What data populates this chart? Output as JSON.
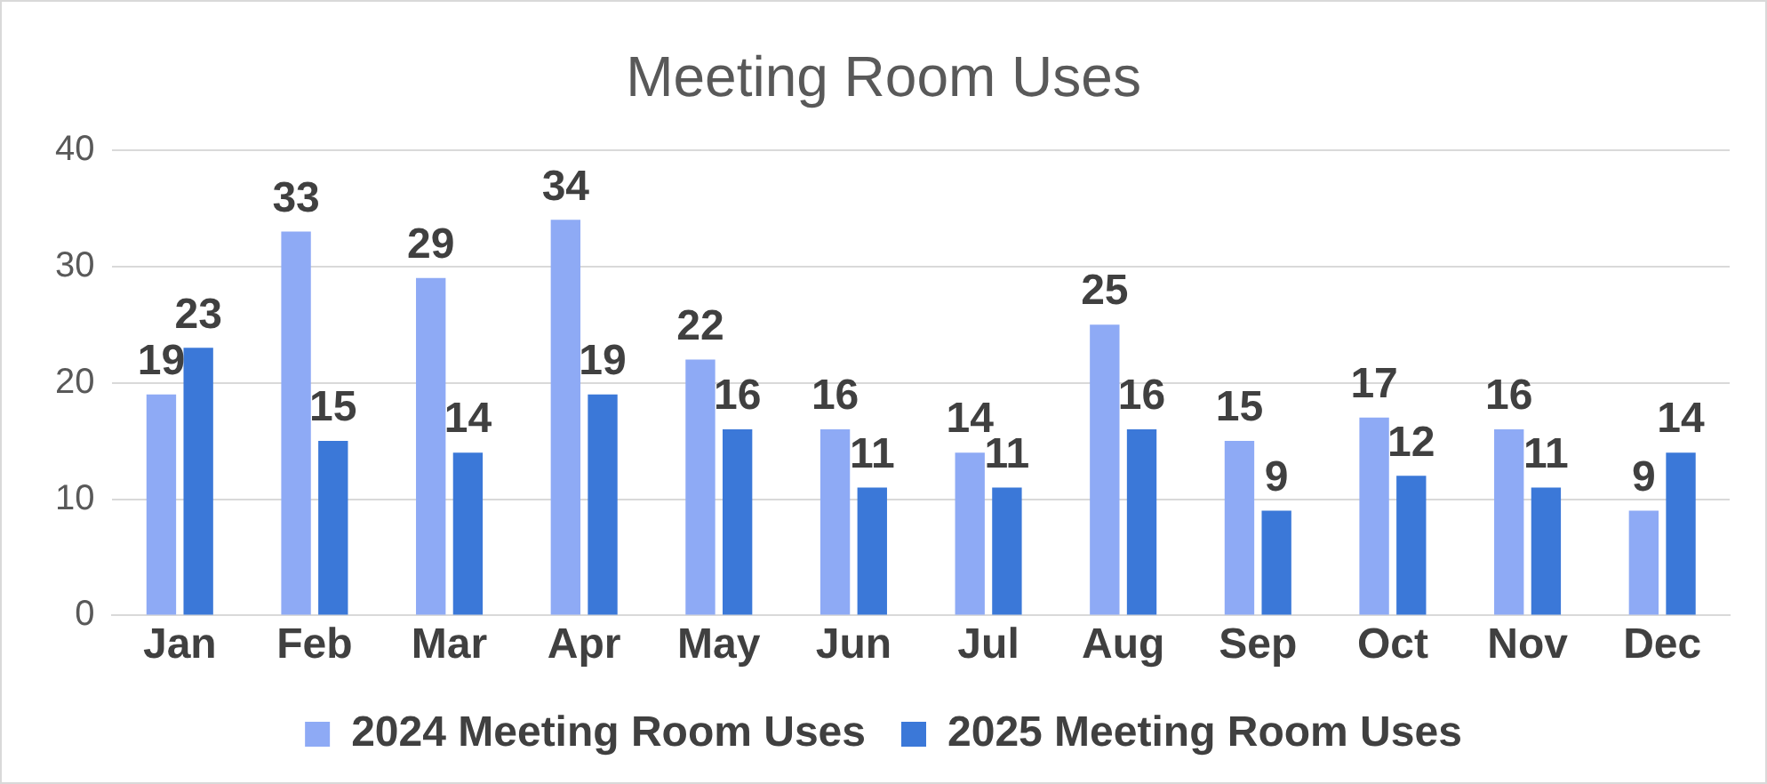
{
  "chart_data": {
    "type": "bar",
    "title": "Meeting Room Uses",
    "categories": [
      "Jan",
      "Feb",
      "Mar",
      "Apr",
      "May",
      "Jun",
      "Jul",
      "Aug",
      "Sep",
      "Oct",
      "Nov",
      "Dec"
    ],
    "series": [
      {
        "name": "2024 Meeting Room Uses",
        "color": "#8eaaf5",
        "values": [
          19,
          33,
          29,
          34,
          22,
          16,
          14,
          25,
          15,
          17,
          16,
          9
        ]
      },
      {
        "name": "2025 Meeting Room Uses",
        "color": "#3b78d8",
        "values": [
          23,
          15,
          14,
          19,
          16,
          11,
          11,
          16,
          9,
          12,
          11,
          14
        ]
      }
    ],
    "ylim": [
      0,
      40
    ],
    "yticks": [
      0,
      10,
      20,
      30,
      40
    ],
    "grid": "y",
    "legend": "bottom",
    "data_labels": true
  }
}
